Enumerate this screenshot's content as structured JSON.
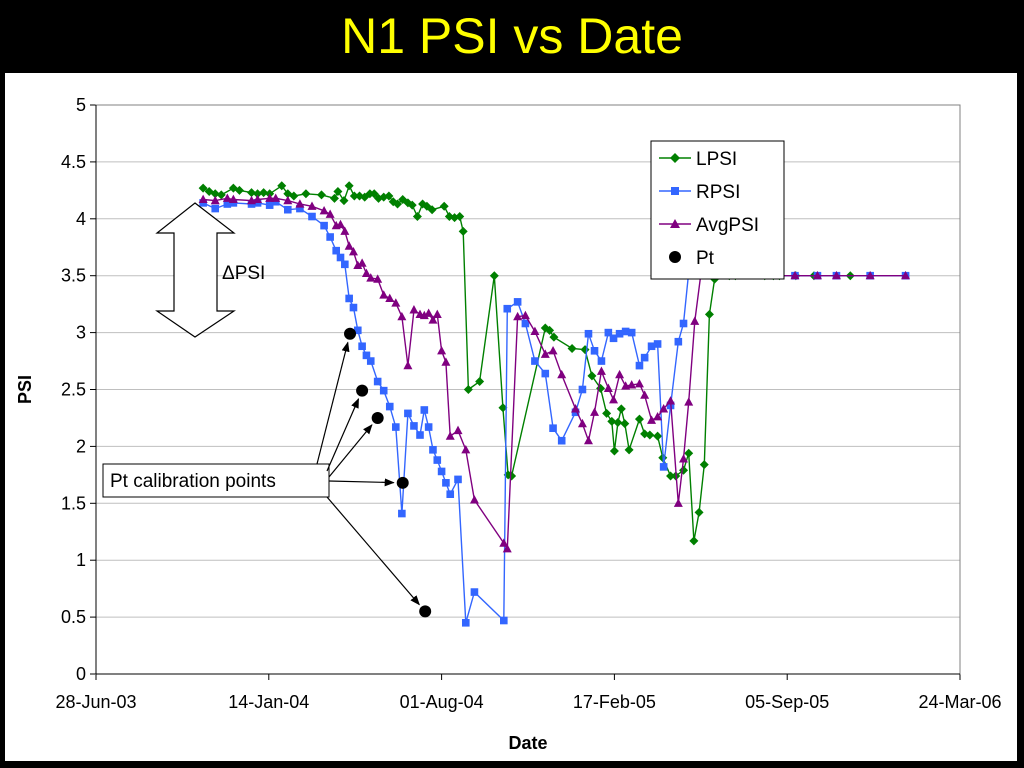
{
  "slide": {
    "title": "N1 PSI vs Date"
  },
  "colors": {
    "background": "#000000",
    "title": "#FFFF00",
    "plot_area": "#FFFFFF",
    "LPSI": "#008000",
    "RPSI": "#3366FF",
    "AvgPSI": "#800080",
    "Pt": "#000000"
  },
  "chart_data": {
    "type": "line",
    "title": "",
    "xlabel": "Date",
    "ylabel": "PSI",
    "ylim": [
      0,
      5
    ],
    "xlim": [
      "2003-06-28",
      "2006-03-24"
    ],
    "xticks": [
      "28-Jun-03",
      "14-Jan-04",
      "01-Aug-04",
      "17-Feb-05",
      "05-Sep-05",
      "24-Mar-06"
    ],
    "yticks": [
      "0",
      "0.5",
      "1",
      "1.5",
      "2",
      "2.5",
      "3",
      "3.5",
      "4",
      "4.5",
      "5"
    ],
    "grid": "horizontal",
    "legend": "top-right",
    "series": [
      {
        "name": "LPSI",
        "marker": "diamond",
        "x": [
          "2003-10-30",
          "2003-11-06",
          "2003-11-13",
          "2003-11-20",
          "2003-12-04",
          "2003-12-11",
          "2003-12-25",
          "2004-01-01",
          "2004-01-08",
          "2004-01-15",
          "2004-01-29",
          "2004-02-05",
          "2004-02-12",
          "2004-02-26",
          "2004-03-15",
          "2004-03-30",
          "2004-04-03",
          "2004-04-10",
          "2004-04-16",
          "2004-04-22",
          "2004-04-28",
          "2004-05-04",
          "2004-05-10",
          "2004-05-15",
          "2004-05-20",
          "2004-05-26",
          "2004-06-01",
          "2004-06-06",
          "2004-06-11",
          "2004-06-17",
          "2004-06-23",
          "2004-06-28",
          "2004-07-04",
          "2004-07-10",
          "2004-07-15",
          "2004-07-21",
          "2004-08-04",
          "2004-08-10",
          "2004-08-16",
          "2004-08-22",
          "2004-08-26",
          "2004-09-01",
          "2004-09-14",
          "2004-10-01",
          "2004-10-11",
          "2004-10-17",
          "2004-10-21",
          "2004-11-29",
          "2004-12-04",
          "2004-12-09",
          "2004-12-30",
          "2005-01-14",
          "2005-01-22",
          "2005-02-01",
          "2005-02-08",
          "2005-02-14",
          "2005-02-17",
          "2005-02-21",
          "2005-02-25",
          "2005-03-01",
          "2005-03-06",
          "2005-03-18",
          "2005-03-24",
          "2005-03-30",
          "2005-04-08",
          "2005-04-14",
          "2005-04-23",
          "2005-04-29",
          "2005-05-08",
          "2005-05-14",
          "2005-05-20",
          "2005-05-26",
          "2005-06-01",
          "2005-06-07",
          "2005-06-13",
          "2005-06-21",
          "2005-06-30",
          "2005-07-07",
          "2005-08-10",
          "2005-08-20",
          "2005-08-27",
          "2005-09-15",
          "2005-10-06",
          "2005-11-17"
        ],
        "values": [
          4.27,
          4.24,
          4.22,
          4.21,
          4.27,
          4.25,
          4.23,
          4.22,
          4.23,
          4.22,
          4.29,
          4.22,
          4.2,
          4.22,
          4.21,
          4.18,
          4.24,
          4.16,
          4.29,
          4.2,
          4.2,
          4.19,
          4.22,
          4.22,
          4.18,
          4.19,
          4.2,
          4.15,
          4.13,
          4.17,
          4.14,
          4.12,
          4.02,
          4.13,
          4.11,
          4.08,
          4.11,
          4.02,
          4.01,
          4.02,
          3.89,
          2.5,
          2.57,
          3.5,
          2.34,
          1.75,
          1.74,
          3.04,
          3.02,
          2.96,
          2.86,
          2.85,
          2.62,
          2.51,
          2.29,
          2.22,
          1.96,
          2.21,
          2.33,
          2.2,
          1.97,
          2.24,
          2.11,
          2.1,
          2.09,
          1.9,
          1.74,
          1.74,
          1.79,
          1.94,
          1.17,
          1.42,
          1.84,
          3.16,
          3.47,
          3.52,
          3.5,
          3.5,
          3.5,
          3.5,
          3.5,
          3.5,
          3.5,
          3.5
        ],
        "color": "#008000"
      },
      {
        "name": "RPSI",
        "marker": "square",
        "x": [
          "2003-10-30",
          "2003-11-13",
          "2003-11-27",
          "2003-12-04",
          "2003-12-25",
          "2004-01-01",
          "2004-01-15",
          "2004-01-22",
          "2004-02-05",
          "2004-02-19",
          "2004-03-04",
          "2004-03-18",
          "2004-03-25",
          "2004-04-01",
          "2004-04-06",
          "2004-04-11",
          "2004-04-16",
          "2004-04-21",
          "2004-04-26",
          "2004-05-01",
          "2004-05-06",
          "2004-05-11",
          "2004-05-19",
          "2004-05-26",
          "2004-06-02",
          "2004-06-09",
          "2004-06-16",
          "2004-06-23",
          "2004-06-30",
          "2004-07-07",
          "2004-07-12",
          "2004-07-17",
          "2004-07-22",
          "2004-07-27",
          "2004-08-01",
          "2004-08-06",
          "2004-08-11",
          "2004-08-20",
          "2004-08-29",
          "2004-09-08",
          "2004-10-12",
          "2004-10-16",
          "2004-10-28",
          "2004-11-06",
          "2004-11-17",
          "2004-11-29",
          "2004-12-08",
          "2004-12-18",
          "2005-01-03",
          "2005-01-11",
          "2005-01-18",
          "2005-01-25",
          "2005-02-02",
          "2005-02-10",
          "2005-02-16",
          "2005-02-23",
          "2005-03-02",
          "2005-03-09",
          "2005-03-18",
          "2005-03-24",
          "2005-04-01",
          "2005-04-08",
          "2005-04-15",
          "2005-04-23",
          "2005-05-02",
          "2005-05-08",
          "2005-05-14",
          "2005-05-21",
          "2005-05-28",
          "2005-06-05",
          "2005-06-29",
          "2005-07-18",
          "2005-08-05",
          "2005-08-25",
          "2005-09-14",
          "2005-10-10",
          "2005-11-01",
          "2005-12-10",
          "2006-01-20"
        ],
        "values": [
          4.14,
          4.09,
          4.13,
          4.14,
          4.13,
          4.14,
          4.12,
          4.15,
          4.08,
          4.09,
          4.02,
          3.94,
          3.84,
          3.72,
          3.66,
          3.6,
          3.3,
          3.22,
          3.02,
          2.88,
          2.8,
          2.75,
          2.57,
          2.49,
          2.35,
          2.17,
          1.41,
          2.29,
          2.18,
          2.1,
          2.32,
          2.17,
          1.97,
          1.88,
          1.78,
          1.68,
          1.58,
          1.71,
          0.45,
          0.72,
          0.47,
          3.21,
          3.27,
          3.08,
          2.75,
          2.64,
          2.16,
          2.05,
          2.3,
          2.5,
          2.99,
          2.84,
          2.75,
          3.0,
          2.95,
          2.99,
          3.01,
          3.0,
          2.71,
          2.78,
          2.88,
          2.9,
          1.82,
          2.36,
          2.92,
          3.08,
          3.53,
          3.56,
          3.5,
          3.5,
          3.5,
          3.5,
          3.5,
          3.5,
          3.5,
          3.5,
          3.5,
          3.5,
          3.5
        ],
        "color": "#3366FF"
      },
      {
        "name": "AvgPSI",
        "marker": "triangle",
        "x": [
          "2003-10-30",
          "2003-11-13",
          "2003-11-27",
          "2003-12-04",
          "2003-12-25",
          "2004-01-01",
          "2004-01-15",
          "2004-01-22",
          "2004-02-05",
          "2004-02-19",
          "2004-03-04",
          "2004-03-18",
          "2004-03-25",
          "2004-04-01",
          "2004-04-06",
          "2004-04-11",
          "2004-04-16",
          "2004-04-21",
          "2004-04-26",
          "2004-05-01",
          "2004-05-06",
          "2004-05-11",
          "2004-05-19",
          "2004-05-26",
          "2004-06-02",
          "2004-06-09",
          "2004-06-16",
          "2004-06-23",
          "2004-06-30",
          "2004-07-07",
          "2004-07-12",
          "2004-07-17",
          "2004-07-22",
          "2004-07-27",
          "2004-08-01",
          "2004-08-06",
          "2004-08-11",
          "2004-08-20",
          "2004-08-29",
          "2004-09-08",
          "2004-10-12",
          "2004-10-16",
          "2004-10-28",
          "2004-11-06",
          "2004-11-17",
          "2004-11-29",
          "2004-12-08",
          "2004-12-18",
          "2005-01-03",
          "2005-01-11",
          "2005-01-18",
          "2005-01-25",
          "2005-02-02",
          "2005-02-10",
          "2005-02-16",
          "2005-02-23",
          "2005-03-02",
          "2005-03-09",
          "2005-03-18",
          "2005-03-24",
          "2005-04-01",
          "2005-04-08",
          "2005-04-15",
          "2005-04-23",
          "2005-05-02",
          "2005-05-08",
          "2005-05-14",
          "2005-05-21",
          "2005-05-28",
          "2005-06-05",
          "2005-06-29",
          "2005-07-18",
          "2005-08-05",
          "2005-08-25",
          "2005-09-14",
          "2005-10-10",
          "2005-11-01",
          "2005-12-10",
          "2006-01-20"
        ],
        "values": [
          4.17,
          4.16,
          4.18,
          4.17,
          4.16,
          4.17,
          4.18,
          4.18,
          4.16,
          4.13,
          4.11,
          4.07,
          4.04,
          3.94,
          3.95,
          3.89,
          3.76,
          3.71,
          3.59,
          3.61,
          3.52,
          3.48,
          3.47,
          3.33,
          3.3,
          3.26,
          3.14,
          2.71,
          3.2,
          3.16,
          3.15,
          3.17,
          3.11,
          3.16,
          2.84,
          2.74,
          2.09,
          2.14,
          1.97,
          1.53,
          1.15,
          1.1,
          3.14,
          3.15,
          3.01,
          2.81,
          2.84,
          2.63,
          2.33,
          2.2,
          2.05,
          2.3,
          2.66,
          2.51,
          2.41,
          2.63,
          2.53,
          2.54,
          2.55,
          2.45,
          2.23,
          2.26,
          2.33,
          2.4,
          1.5,
          1.89,
          2.39,
          3.1,
          3.51,
          3.53,
          3.5,
          3.5,
          3.5,
          3.5,
          3.5,
          3.5,
          3.5,
          3.5,
          3.5
        ],
        "color": "#800080"
      },
      {
        "name": "Pt",
        "marker": "circle",
        "x": [
          "2004-04-17",
          "2004-05-01",
          "2004-05-19",
          "2004-06-17",
          "2004-07-13"
        ],
        "values": [
          2.99,
          2.49,
          2.25,
          1.68,
          0.55
        ],
        "color": "#000000"
      }
    ],
    "annotations": {
      "delta_label": "ΔPSI",
      "callout_label": "Pt calibration points"
    }
  }
}
